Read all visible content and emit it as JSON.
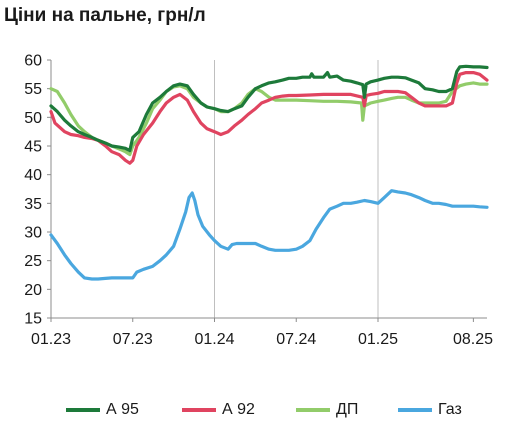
{
  "chart_data": {
    "type": "line",
    "title": "Ціни на пальне, грн/л",
    "xlabel": "",
    "ylabel": "",
    "ylim": [
      15,
      60
    ],
    "yticks": [
      15,
      20,
      25,
      30,
      35,
      40,
      45,
      50,
      55,
      60
    ],
    "xlim": [
      "2023-01",
      "2025-09"
    ],
    "xticks": [
      {
        "date": "2023-01",
        "label": "01.23"
      },
      {
        "date": "2023-07",
        "label": "07.23"
      },
      {
        "date": "2024-01",
        "label": "01.24"
      },
      {
        "date": "2024-07",
        "label": "07.24"
      },
      {
        "date": "2025-01",
        "label": "01.25"
      },
      {
        "date": "2025-08",
        "label": "08.25"
      }
    ],
    "vertical_gridlines": [
      "2024-01",
      "2025-01"
    ],
    "grid": "vertical-at-year-start",
    "legend_position": "bottom",
    "series": [
      {
        "name": "А 95",
        "color": "#1d7a3a",
        "points": [
          [
            "2023-01-01",
            52.0
          ],
          [
            "2023-01-15",
            51.0
          ],
          [
            "2023-02-01",
            49.5
          ],
          [
            "2023-02-15",
            48.5
          ],
          [
            "2023-03-01",
            47.5
          ],
          [
            "2023-03-15",
            47.0
          ],
          [
            "2023-04-01",
            46.5
          ],
          [
            "2023-04-15",
            46.0
          ],
          [
            "2023-05-01",
            45.5
          ],
          [
            "2023-05-15",
            45.0
          ],
          [
            "2023-06-01",
            44.8
          ],
          [
            "2023-06-15",
            44.6
          ],
          [
            "2023-06-25",
            44.2
          ],
          [
            "2023-07-01",
            46.5
          ],
          [
            "2023-07-15",
            47.5
          ],
          [
            "2023-08-01",
            50.5
          ],
          [
            "2023-08-15",
            52.5
          ],
          [
            "2023-09-01",
            53.5
          ],
          [
            "2023-09-15",
            54.5
          ],
          [
            "2023-10-01",
            55.5
          ],
          [
            "2023-10-15",
            55.8
          ],
          [
            "2023-11-01",
            55.5
          ],
          [
            "2023-11-15",
            54.0
          ],
          [
            "2023-12-01",
            52.5
          ],
          [
            "2023-12-15",
            51.8
          ],
          [
            "2024-01-01",
            51.5
          ],
          [
            "2024-01-15",
            51.2
          ],
          [
            "2024-02-01",
            51.0
          ],
          [
            "2024-02-15",
            51.5
          ],
          [
            "2024-03-01",
            52.0
          ],
          [
            "2024-03-15",
            53.5
          ],
          [
            "2024-04-01",
            55.0
          ],
          [
            "2024-04-15",
            55.5
          ],
          [
            "2024-05-01",
            56.0
          ],
          [
            "2024-05-15",
            56.2
          ],
          [
            "2024-06-01",
            56.5
          ],
          [
            "2024-06-15",
            56.8
          ],
          [
            "2024-07-01",
            56.8
          ],
          [
            "2024-07-15",
            57.0
          ],
          [
            "2024-08-01",
            57.0
          ],
          [
            "2024-08-05",
            57.6
          ],
          [
            "2024-08-10",
            57.0
          ],
          [
            "2024-08-20",
            57.0
          ],
          [
            "2024-09-01",
            57.0
          ],
          [
            "2024-09-10",
            57.8
          ],
          [
            "2024-09-15",
            57.0
          ],
          [
            "2024-10-01",
            57.2
          ],
          [
            "2024-10-15",
            56.5
          ],
          [
            "2024-11-01",
            56.3
          ],
          [
            "2024-11-15",
            56.0
          ],
          [
            "2024-11-28",
            55.7
          ],
          [
            "2024-12-01",
            53.5
          ],
          [
            "2024-12-05",
            55.8
          ],
          [
            "2024-12-15",
            56.2
          ],
          [
            "2025-01-01",
            56.5
          ],
          [
            "2025-01-15",
            56.8
          ],
          [
            "2025-02-01",
            57.0
          ],
          [
            "2025-02-15",
            57.0
          ],
          [
            "2025-03-01",
            56.9
          ],
          [
            "2025-03-15",
            56.5
          ],
          [
            "2025-04-01",
            56.0
          ],
          [
            "2025-04-15",
            55.0
          ],
          [
            "2025-05-01",
            54.8
          ],
          [
            "2025-05-15",
            54.5
          ],
          [
            "2025-06-01",
            54.5
          ],
          [
            "2025-06-15",
            55.0
          ],
          [
            "2025-06-25",
            58.0
          ],
          [
            "2025-07-01",
            58.8
          ],
          [
            "2025-07-15",
            58.9
          ],
          [
            "2025-08-01",
            58.8
          ],
          [
            "2025-08-15",
            58.8
          ],
          [
            "2025-09-01",
            58.7
          ]
        ]
      },
      {
        "name": "А 92",
        "color": "#e04460",
        "points": [
          [
            "2023-01-01",
            51.0
          ],
          [
            "2023-01-10",
            49.0
          ],
          [
            "2023-02-01",
            47.5
          ],
          [
            "2023-02-15",
            47.0
          ],
          [
            "2023-03-01",
            46.8
          ],
          [
            "2023-03-15",
            46.5
          ],
          [
            "2023-04-01",
            46.3
          ],
          [
            "2023-04-15",
            46.0
          ],
          [
            "2023-05-01",
            45.0
          ],
          [
            "2023-05-15",
            44.0
          ],
          [
            "2023-06-01",
            43.5
          ],
          [
            "2023-06-15",
            42.5
          ],
          [
            "2023-06-25",
            42.0
          ],
          [
            "2023-07-01",
            42.5
          ],
          [
            "2023-07-10",
            45.0
          ],
          [
            "2023-07-25",
            47.0
          ],
          [
            "2023-08-15",
            49.0
          ],
          [
            "2023-09-01",
            51.0
          ],
          [
            "2023-09-15",
            52.5
          ],
          [
            "2023-10-01",
            53.5
          ],
          [
            "2023-10-15",
            54.0
          ],
          [
            "2023-11-01",
            53.0
          ],
          [
            "2023-11-15",
            51.0
          ],
          [
            "2023-12-01",
            49.0
          ],
          [
            "2023-12-15",
            48.0
          ],
          [
            "2024-01-01",
            47.5
          ],
          [
            "2024-01-15",
            47.0
          ],
          [
            "2024-02-01",
            47.5
          ],
          [
            "2024-02-15",
            48.5
          ],
          [
            "2024-03-01",
            49.5
          ],
          [
            "2024-03-15",
            50.5
          ],
          [
            "2024-04-01",
            51.5
          ],
          [
            "2024-04-15",
            52.5
          ],
          [
            "2024-05-01",
            53.0
          ],
          [
            "2024-05-15",
            53.5
          ],
          [
            "2024-06-01",
            53.7
          ],
          [
            "2024-06-15",
            53.8
          ],
          [
            "2024-07-01",
            53.8
          ],
          [
            "2024-08-01",
            53.9
          ],
          [
            "2024-09-01",
            54.0
          ],
          [
            "2024-10-01",
            54.0
          ],
          [
            "2024-11-01",
            54.0
          ],
          [
            "2024-11-28",
            53.5
          ],
          [
            "2024-12-01",
            52.0
          ],
          [
            "2024-12-05",
            53.8
          ],
          [
            "2024-12-15",
            54.0
          ],
          [
            "2025-01-01",
            54.2
          ],
          [
            "2025-01-15",
            54.5
          ],
          [
            "2025-02-01",
            54.5
          ],
          [
            "2025-02-15",
            54.5
          ],
          [
            "2025-03-01",
            54.3
          ],
          [
            "2025-03-15",
            53.5
          ],
          [
            "2025-04-01",
            52.5
          ],
          [
            "2025-04-15",
            52.0
          ],
          [
            "2025-05-01",
            52.0
          ],
          [
            "2025-05-15",
            52.0
          ],
          [
            "2025-06-01",
            52.0
          ],
          [
            "2025-06-15",
            52.5
          ],
          [
            "2025-06-25",
            56.0
          ],
          [
            "2025-07-01",
            57.5
          ],
          [
            "2025-07-15",
            57.8
          ],
          [
            "2025-08-01",
            57.8
          ],
          [
            "2025-08-15",
            57.5
          ],
          [
            "2025-09-01",
            56.5
          ]
        ]
      },
      {
        "name": "ДП",
        "color": "#92cc6a",
        "points": [
          [
            "2023-01-01",
            55.0
          ],
          [
            "2023-01-15",
            54.5
          ],
          [
            "2023-02-01",
            52.5
          ],
          [
            "2023-02-15",
            50.5
          ],
          [
            "2023-03-01",
            48.5
          ],
          [
            "2023-03-15",
            47.5
          ],
          [
            "2023-04-01",
            46.5
          ],
          [
            "2023-04-15",
            46.0
          ],
          [
            "2023-05-01",
            45.5
          ],
          [
            "2023-05-15",
            45.0
          ],
          [
            "2023-06-01",
            44.5
          ],
          [
            "2023-06-15",
            44.0
          ],
          [
            "2023-06-25",
            43.5
          ],
          [
            "2023-07-01",
            45.0
          ],
          [
            "2023-07-15",
            46.5
          ],
          [
            "2023-08-01",
            49.0
          ],
          [
            "2023-08-15",
            51.5
          ],
          [
            "2023-09-01",
            53.0
          ],
          [
            "2023-09-15",
            54.5
          ],
          [
            "2023-10-01",
            55.3
          ],
          [
            "2023-10-15",
            55.5
          ],
          [
            "2023-11-01",
            55.0
          ],
          [
            "2023-11-15",
            53.5
          ],
          [
            "2023-12-01",
            52.5
          ],
          [
            "2023-12-15",
            51.8
          ],
          [
            "2024-01-01",
            51.5
          ],
          [
            "2024-01-15",
            51.0
          ],
          [
            "2024-02-01",
            51.0
          ],
          [
            "2024-02-15",
            51.5
          ],
          [
            "2024-03-01",
            52.5
          ],
          [
            "2024-03-15",
            54.0
          ],
          [
            "2024-04-01",
            55.0
          ],
          [
            "2024-04-15",
            54.5
          ],
          [
            "2024-05-01",
            53.5
          ],
          [
            "2024-05-15",
            53.0
          ],
          [
            "2024-06-01",
            53.0
          ],
          [
            "2024-07-01",
            53.0
          ],
          [
            "2024-08-01",
            52.9
          ],
          [
            "2024-09-01",
            52.8
          ],
          [
            "2024-10-01",
            52.8
          ],
          [
            "2024-11-01",
            52.7
          ],
          [
            "2024-11-25",
            52.5
          ],
          [
            "2024-11-28",
            49.5
          ],
          [
            "2024-12-01",
            52.0
          ],
          [
            "2024-12-15",
            52.5
          ],
          [
            "2025-01-01",
            52.8
          ],
          [
            "2025-01-15",
            53.0
          ],
          [
            "2025-02-01",
            53.3
          ],
          [
            "2025-02-15",
            53.5
          ],
          [
            "2025-03-01",
            53.5
          ],
          [
            "2025-03-15",
            53.0
          ],
          [
            "2025-04-01",
            52.5
          ],
          [
            "2025-04-15",
            52.5
          ],
          [
            "2025-05-01",
            52.5
          ],
          [
            "2025-05-15",
            52.5
          ],
          [
            "2025-06-01",
            52.8
          ],
          [
            "2025-06-15",
            54.5
          ],
          [
            "2025-07-01",
            55.5
          ],
          [
            "2025-07-15",
            55.8
          ],
          [
            "2025-08-01",
            56.0
          ],
          [
            "2025-08-15",
            55.8
          ],
          [
            "2025-09-01",
            55.8
          ]
        ]
      },
      {
        "name": "Газ",
        "color": "#4aa7df",
        "points": [
          [
            "2023-01-01",
            29.5
          ],
          [
            "2023-01-15",
            28.0
          ],
          [
            "2023-02-01",
            26.0
          ],
          [
            "2023-02-15",
            24.5
          ],
          [
            "2023-03-01",
            23.0
          ],
          [
            "2023-03-15",
            22.0
          ],
          [
            "2023-04-01",
            21.8
          ],
          [
            "2023-04-15",
            21.8
          ],
          [
            "2023-05-01",
            21.9
          ],
          [
            "2023-05-15",
            22.0
          ],
          [
            "2023-06-01",
            22.0
          ],
          [
            "2023-06-15",
            22.0
          ],
          [
            "2023-07-01",
            22.0
          ],
          [
            "2023-07-10",
            23.0
          ],
          [
            "2023-07-25",
            23.5
          ],
          [
            "2023-08-15",
            24.0
          ],
          [
            "2023-09-01",
            25.0
          ],
          [
            "2023-09-15",
            26.0
          ],
          [
            "2023-10-01",
            27.5
          ],
          [
            "2023-10-15",
            30.5
          ],
          [
            "2023-10-28",
            33.5
          ],
          [
            "2023-11-05",
            36.0
          ],
          [
            "2023-11-12",
            36.8
          ],
          [
            "2023-11-18",
            35.5
          ],
          [
            "2023-11-25",
            33.0
          ],
          [
            "2023-12-05",
            31.0
          ],
          [
            "2023-12-20",
            29.5
          ],
          [
            "2024-01-01",
            28.5
          ],
          [
            "2024-01-15",
            27.5
          ],
          [
            "2024-02-01",
            27.0
          ],
          [
            "2024-02-10",
            27.8
          ],
          [
            "2024-02-20",
            28.0
          ],
          [
            "2024-03-15",
            28.0
          ],
          [
            "2024-04-01",
            28.0
          ],
          [
            "2024-04-15",
            27.5
          ],
          [
            "2024-05-01",
            27.0
          ],
          [
            "2024-05-15",
            26.8
          ],
          [
            "2024-06-01",
            26.8
          ],
          [
            "2024-06-15",
            26.8
          ],
          [
            "2024-07-01",
            27.0
          ],
          [
            "2024-07-15",
            27.5
          ],
          [
            "2024-08-01",
            28.5
          ],
          [
            "2024-08-15",
            30.5
          ],
          [
            "2024-09-01",
            32.5
          ],
          [
            "2024-09-15",
            34.0
          ],
          [
            "2024-10-01",
            34.5
          ],
          [
            "2024-10-15",
            35.0
          ],
          [
            "2024-11-01",
            35.0
          ],
          [
            "2024-11-15",
            35.2
          ],
          [
            "2024-12-01",
            35.5
          ],
          [
            "2024-12-15",
            35.3
          ],
          [
            "2025-01-01",
            35.0
          ],
          [
            "2025-01-15",
            36.0
          ],
          [
            "2025-02-01",
            37.2
          ],
          [
            "2025-02-15",
            37.0
          ],
          [
            "2025-03-01",
            36.8
          ],
          [
            "2025-03-15",
            36.5
          ],
          [
            "2025-04-01",
            36.0
          ],
          [
            "2025-04-15",
            35.5
          ],
          [
            "2025-05-01",
            35.0
          ],
          [
            "2025-05-15",
            35.0
          ],
          [
            "2025-06-01",
            34.8
          ],
          [
            "2025-06-15",
            34.5
          ],
          [
            "2025-07-01",
            34.5
          ],
          [
            "2025-07-15",
            34.5
          ],
          [
            "2025-08-01",
            34.5
          ],
          [
            "2025-08-15",
            34.4
          ],
          [
            "2025-09-01",
            34.3
          ]
        ]
      }
    ]
  }
}
